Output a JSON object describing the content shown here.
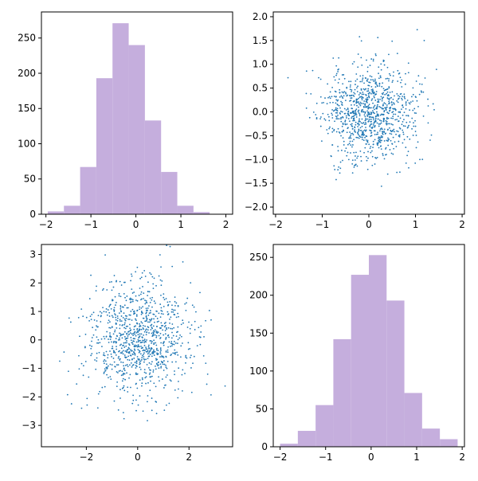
{
  "colors": {
    "hist_fill": "#c5aedd",
    "scatter_point": "#1f77b4",
    "axis": "#000000"
  },
  "chart_data": [
    {
      "type": "bar",
      "subtype": "histogram",
      "bin_edges": [
        -1.96,
        -1.6,
        -1.24,
        -0.88,
        -0.52,
        -0.16,
        0.2,
        0.56,
        0.92,
        1.28,
        1.64
      ],
      "values": [
        4,
        12,
        67,
        193,
        271,
        240,
        133,
        60,
        12,
        3
      ],
      "xlim": [
        -2.1,
        2.15
      ],
      "ylim": [
        0,
        287
      ],
      "xticks": [
        -2,
        -1,
        0,
        1,
        2
      ],
      "yticks": [
        0,
        50,
        100,
        150,
        200,
        250
      ],
      "xlabel": "",
      "ylabel": "",
      "title": ""
    },
    {
      "type": "scatter",
      "point_count": 1000,
      "distribution": {
        "x_mean": 0.0,
        "x_std": 0.5,
        "y_mean": 0.0,
        "y_std": 0.5
      },
      "seed": 11,
      "xlim": [
        -2.05,
        2.05
      ],
      "ylim": [
        -2.15,
        2.1
      ],
      "xticks": [
        -2,
        -1,
        0,
        1,
        2
      ],
      "yticks": [
        -2.0,
        -1.5,
        -1.0,
        -0.5,
        0.0,
        0.5,
        1.0,
        1.5,
        2.0
      ],
      "ytick_labels": [
        "−2.0",
        "−1.5",
        "−1.0",
        "−0.5",
        "0.0",
        "0.5",
        "1.0",
        "1.5",
        "2.0"
      ],
      "xlabel": "",
      "ylabel": "",
      "title": ""
    },
    {
      "type": "scatter",
      "point_count": 1000,
      "distribution": {
        "x_mean": 0.0,
        "x_std": 1.0,
        "y_mean": 0.0,
        "y_std": 1.0
      },
      "seed": 23,
      "xlim": [
        -3.75,
        3.7
      ],
      "ylim": [
        -3.75,
        3.35
      ],
      "xticks": [
        -2,
        0,
        2
      ],
      "yticks": [
        -3,
        -2,
        -1,
        0,
        1,
        2,
        3
      ],
      "xlabel": "",
      "ylabel": "",
      "title": ""
    },
    {
      "type": "bar",
      "subtype": "histogram",
      "bin_edges": [
        -2.0,
        -1.61,
        -1.22,
        -0.83,
        -0.44,
        -0.05,
        0.34,
        0.73,
        1.12,
        1.51,
        1.9
      ],
      "values": [
        4,
        21,
        55,
        142,
        227,
        253,
        193,
        71,
        24,
        10
      ],
      "xlim": [
        -2.15,
        2.05
      ],
      "ylim": [
        0,
        267
      ],
      "xticks": [
        -2,
        -1,
        0,
        1,
        2
      ],
      "yticks": [
        0,
        50,
        100,
        150,
        200,
        250
      ],
      "xlabel": "",
      "ylabel": "",
      "title": ""
    }
  ]
}
